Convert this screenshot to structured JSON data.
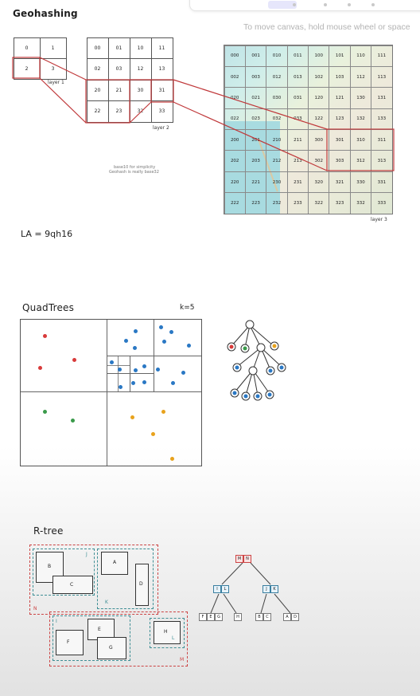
{
  "hint": "To move canvas, hold mouse wheel or space",
  "geohashing": {
    "title": "Geohashing",
    "layer1": {
      "cells": [
        "0",
        "1",
        "2",
        "3"
      ],
      "label": "layer 1"
    },
    "layer2": {
      "cells": [
        "00",
        "01",
        "10",
        "11",
        "02",
        "03",
        "12",
        "13",
        "20",
        "21",
        "30",
        "31",
        "22",
        "23",
        "32",
        "33"
      ],
      "label": "layer 2"
    },
    "layer3": {
      "cells": [
        "000",
        "001",
        "010",
        "011",
        "100",
        "101",
        "110",
        "111",
        "002",
        "003",
        "012",
        "013",
        "102",
        "103",
        "112",
        "113",
        "020",
        "021",
        "030",
        "031",
        "120",
        "121",
        "130",
        "131",
        "022",
        "023",
        "032",
        "033",
        "122",
        "123",
        "132",
        "133",
        "200",
        "201",
        "210",
        "211",
        "300",
        "301",
        "310",
        "311",
        "202",
        "203",
        "212",
        "213",
        "302",
        "303",
        "312",
        "313",
        "220",
        "221",
        "230",
        "231",
        "320",
        "321",
        "330",
        "331",
        "222",
        "223",
        "232",
        "233",
        "322",
        "323",
        "332",
        "333"
      ],
      "label": "layer 3"
    },
    "note_line1": "base10 for simplicity",
    "note_line2": "Geohash is really base32",
    "la": "LA = 9qh16"
  },
  "quadtrees": {
    "title": "QuadTrees",
    "k_label": "k=5"
  },
  "rtree": {
    "title": "R-tree",
    "boxes": [
      "B",
      "C",
      "A",
      "D",
      "E",
      "F",
      "G",
      "H"
    ],
    "groups": [
      "I",
      "J",
      "K",
      "L",
      "N",
      "M"
    ],
    "root": [
      "M",
      "N"
    ],
    "mid_left": [
      "I",
      "L"
    ],
    "mid_right": [
      "J",
      "K"
    ],
    "leaves": [
      [
        "F",
        "E",
        "G"
      ],
      [
        "H"
      ],
      [
        "B",
        "C"
      ],
      [
        "A",
        "D"
      ]
    ]
  },
  "colors": {
    "red": "#d83a3a",
    "blue": "#2a78c4",
    "green": "#3a9a4a",
    "orange": "#e8a21c",
    "highlight": "#c0393b"
  }
}
